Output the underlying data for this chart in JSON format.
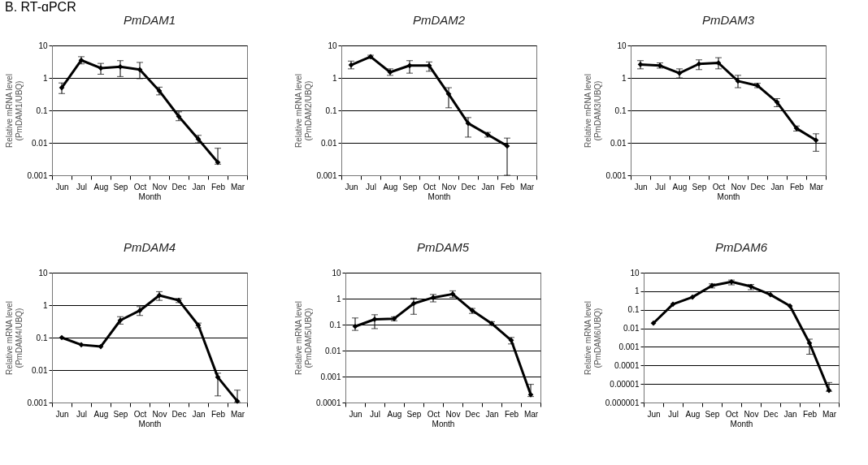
{
  "chart_data": [
    {
      "type": "line",
      "title": "PmDAM1",
      "annotations": [
        "B. RT-qPCR"
      ],
      "xlabel": "Month",
      "ylabel": "Relative mRNA level\n(PmDAM1/UBQ)",
      "categories": [
        "Jun",
        "Jul",
        "Aug",
        "Sep",
        "Oct",
        "Nov",
        "Dec",
        "Jan",
        "Feb",
        "Mar"
      ],
      "log": "y",
      "grid": "y",
      "marker": "diamond",
      "line_style": "solid",
      "ylim": [
        0.001,
        10
      ],
      "yticks": [
        0.001,
        0.01,
        0.1,
        1,
        10
      ],
      "series": [
        {
          "color": "#000000",
          "values": [
            0.5,
            3.5,
            2.0,
            2.2,
            1.8,
            0.4,
            0.065,
            0.013,
            0.0025,
            null
          ],
          "errors": [
            [
              0.33,
              0.7
            ],
            [
              2.7,
              4.5
            ],
            [
              1.3,
              2.8
            ],
            [
              1.1,
              3.4
            ],
            [
              0.95,
              3.0
            ],
            [
              0.3,
              0.52
            ],
            [
              0.048,
              0.09
            ],
            [
              0.01,
              0.017
            ],
            [
              0.0022,
              0.0068
            ],
            null
          ]
        }
      ]
    },
    {
      "type": "line",
      "title": "PmDAM2",
      "xlabel": "Month",
      "ylabel": "Relative mRNA level\n(PmDAM2/UBQ)",
      "categories": [
        "Jun",
        "Jul",
        "Aug",
        "Sep",
        "Oct",
        "Nov",
        "Dec",
        "Jan",
        "Feb",
        "Mar"
      ],
      "log": "y",
      "grid": "y",
      "marker": "diamond",
      "line_style": "solid",
      "ylim": [
        0.001,
        10
      ],
      "yticks": [
        0.001,
        0.01,
        0.1,
        1,
        10
      ],
      "series": [
        {
          "color": "#000000",
          "values": [
            2.5,
            4.5,
            1.5,
            2.4,
            2.4,
            0.32,
            0.04,
            0.018,
            0.008,
            null
          ],
          "errors": [
            [
              1.9,
              3.3
            ],
            [
              4.0,
              5.0
            ],
            [
              1.2,
              1.9
            ],
            [
              1.4,
              3.4
            ],
            [
              1.6,
              3.1
            ],
            [
              0.12,
              0.5
            ],
            [
              0.015,
              0.06
            ],
            [
              0.015,
              0.021
            ],
            [
              0.001,
              0.014
            ],
            null
          ]
        }
      ]
    },
    {
      "type": "line",
      "title": "PmDAM3",
      "xlabel": "Month",
      "ylabel": "Relative mRNA level\n(PmDAM3/UBQ)",
      "categories": [
        "Jun",
        "Jul",
        "Aug",
        "Sep",
        "Oct",
        "Nov",
        "Dec",
        "Jan",
        "Feb",
        "Mar"
      ],
      "log": "y",
      "grid": "y",
      "marker": "diamond",
      "line_style": "solid",
      "ylim": [
        0.001,
        10
      ],
      "yticks": [
        0.001,
        0.01,
        0.1,
        1,
        10
      ],
      "series": [
        {
          "color": "#000000",
          "values": [
            2.6,
            2.4,
            1.4,
            2.7,
            2.9,
            0.8,
            0.58,
            0.18,
            0.028,
            0.012
          ],
          "errors": [
            [
              1.9,
              3.4
            ],
            [
              2.0,
              2.9
            ],
            [
              1.0,
              1.9
            ],
            [
              1.8,
              3.6
            ],
            [
              1.9,
              4.2
            ],
            [
              0.5,
              1.2
            ],
            [
              0.5,
              0.68
            ],
            [
              0.13,
              0.23
            ],
            [
              0.023,
              0.033
            ],
            [
              0.0055,
              0.019
            ]
          ]
        }
      ]
    },
    {
      "type": "line",
      "title": "PmDAM4",
      "xlabel": "Month",
      "ylabel": "Relative mRNA level\n(PmDAM4/UBQ)",
      "categories": [
        "Jun",
        "Jul",
        "Aug",
        "Sep",
        "Oct",
        "Nov",
        "Dec",
        "Jan",
        "Feb",
        "Mar"
      ],
      "log": "y",
      "grid": "y",
      "marker": "diamond",
      "line_style": "solid",
      "ylim": [
        0.001,
        10
      ],
      "yticks": [
        0.001,
        0.01,
        0.1,
        1,
        10
      ],
      "series": [
        {
          "color": "#000000",
          "values": [
            0.1,
            0.06,
            0.053,
            0.34,
            0.68,
            2.0,
            1.4,
            0.24,
            0.006,
            0.0011
          ],
          "errors": [
            null,
            null,
            null,
            [
              0.26,
              0.44
            ],
            [
              0.48,
              0.9
            ],
            [
              1.4,
              2.6
            ],
            [
              1.2,
              1.6
            ],
            [
              0.2,
              0.28
            ],
            [
              0.0016,
              0.008
            ],
            [
              0.001,
              0.0024
            ]
          ]
        }
      ]
    },
    {
      "type": "line",
      "title": "PmDAM5",
      "xlabel": "Month",
      "ylabel": "Relative mRNA level\n(PmDAM5/UBQ)",
      "categories": [
        "Jun",
        "Jul",
        "Aug",
        "Sep",
        "Oct",
        "Nov",
        "Dec",
        "Jan",
        "Feb",
        "Mar"
      ],
      "log": "y",
      "grid": "y",
      "marker": "diamond",
      "line_style": "solid",
      "ylim": [
        0.0001,
        10
      ],
      "yticks": [
        0.0001,
        0.001,
        0.01,
        0.1,
        1,
        10
      ],
      "series": [
        {
          "color": "#000000",
          "values": [
            0.085,
            0.16,
            0.17,
            0.65,
            1.1,
            1.5,
            0.35,
            0.11,
            0.025,
            0.0002
          ],
          "errors": [
            [
              0.06,
              0.18
            ],
            [
              0.07,
              0.24
            ],
            [
              0.14,
              0.2
            ],
            [
              0.25,
              1.05
            ],
            [
              0.75,
              1.45
            ],
            [
              1.1,
              2.0
            ],
            [
              0.27,
              0.42
            ],
            [
              0.095,
              0.13
            ],
            [
              0.018,
              0.032
            ],
            [
              0.00017,
              0.0005
            ]
          ]
        }
      ]
    },
    {
      "type": "line",
      "title": "PmDAM6",
      "xlabel": "Month",
      "ylabel": "Relative mRNA level\n(PmDAM6/UBQ)",
      "categories": [
        "Jun",
        "Jul",
        "Aug",
        "Sep",
        "Oct",
        "Nov",
        "Dec",
        "Jan",
        "Feb",
        "Mar"
      ],
      "log": "y",
      "grid": "y",
      "marker": "diamond",
      "line_style": "solid",
      "ylim": [
        1e-06,
        10
      ],
      "yticks": [
        {
          "value": 1e-06,
          "label": "0.000001"
        },
        {
          "value": 1e-05,
          "label": "0.00001"
        },
        0.0001,
        0.001,
        0.01,
        0.1,
        1,
        10
      ],
      "series": [
        {
          "color": "#000000",
          "values": [
            0.019,
            0.2,
            0.48,
            2.0,
            3.2,
            1.8,
            0.65,
            0.16,
            0.0016,
            4.5e-06
          ],
          "errors": [
            null,
            null,
            null,
            [
              1.5,
              2.5
            ],
            [
              2.2,
              4.0
            ],
            [
              1.2,
              2.3
            ],
            null,
            null,
            [
              0.0004,
              0.0026
            ],
            [
              4e-06,
              1.2e-05
            ]
          ]
        }
      ]
    }
  ]
}
